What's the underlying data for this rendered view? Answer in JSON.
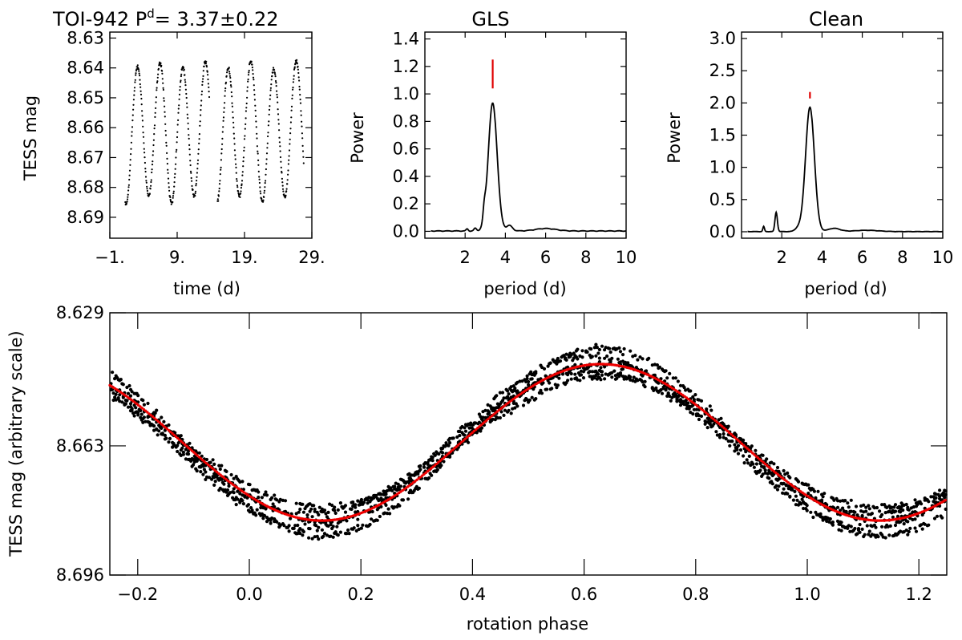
{
  "figure": {
    "title_star": "TOI-942",
    "title_period_symbol": "P",
    "title_period_sup": "d",
    "title_period_value": "= 3.37±0.22"
  },
  "chart_data": [
    {
      "type": "scatter",
      "name": "light curve",
      "xlabel": "time (d)",
      "ylabel": "TESS mag",
      "xlim": [
        -1,
        29
      ],
      "ylim": [
        8.697,
        8.628
      ],
      "y_inverted": true,
      "xticks": [
        -1,
        9,
        19,
        29
      ],
      "xtick_labels": [
        "−1.",
        "9.",
        "19.",
        "29."
      ],
      "yticks": [
        8.63,
        8.64,
        8.65,
        8.66,
        8.67,
        8.68,
        8.69
      ],
      "ytick_labels": [
        "8.63",
        "8.64",
        "8.65",
        "8.66",
        "8.67",
        "8.68",
        "8.69"
      ],
      "segments": [
        [
          1.3,
          13.8
        ],
        [
          15.0,
          27.8
        ]
      ],
      "model": {
        "period": 3.37,
        "amplitude": 0.0225,
        "mean": 8.6615,
        "epoch": 3.1
      }
    },
    {
      "type": "line",
      "name": "periodogram",
      "title": "GLS",
      "xlabel": "period (d)",
      "ylabel": "Power",
      "xlim": [
        0,
        10
      ],
      "ylim": [
        -0.05,
        1.45
      ],
      "xticks": [
        2,
        4,
        6,
        8,
        10
      ],
      "xtick_labels": [
        "2",
        "4",
        "6",
        "8",
        "10"
      ],
      "yticks": [
        0.0,
        0.2,
        0.4,
        0.6,
        0.8,
        1.0,
        1.2,
        1.4
      ],
      "ytick_labels": [
        "0.0",
        "0.2",
        "0.4",
        "0.6",
        "0.8",
        "1.0",
        "1.2",
        "1.4"
      ],
      "peaks": [
        {
          "x": 3.37,
          "y": 0.93,
          "w": 0.22
        },
        {
          "x": 2.95,
          "y": 0.08,
          "w": 0.06
        },
        {
          "x": 4.2,
          "y": 0.04,
          "w": 0.15
        },
        {
          "x": 6.0,
          "y": 0.018,
          "w": 0.5
        },
        {
          "x": 2.5,
          "y": 0.02,
          "w": 0.06
        },
        {
          "x": 2.1,
          "y": 0.015,
          "w": 0.05
        }
      ],
      "marker": {
        "x": 3.37,
        "y_from": 1.04,
        "y_to": 1.25,
        "color": "#e00000"
      }
    },
    {
      "type": "line",
      "name": "clean periodogram",
      "title": "Clean",
      "xlabel": "period (d)",
      "ylabel": "Power",
      "xlim": [
        0,
        10
      ],
      "ylim": [
        -0.1,
        3.1
      ],
      "xticks": [
        2,
        4,
        6,
        8,
        10
      ],
      "xtick_labels": [
        "2",
        "4",
        "6",
        "8",
        "10"
      ],
      "yticks": [
        0.0,
        0.5,
        1.0,
        1.5,
        2.0,
        2.5,
        3.0
      ],
      "ytick_labels": [
        "0.0",
        "0.5",
        "1.0",
        "1.5",
        "2.0",
        "2.5",
        "3.0"
      ],
      "peaks": [
        {
          "x": 3.4,
          "y": 1.93,
          "w": 0.22
        },
        {
          "x": 1.72,
          "y": 0.3,
          "w": 0.06
        },
        {
          "x": 1.1,
          "y": 0.08,
          "w": 0.04
        },
        {
          "x": 2.8,
          "y": 0.05,
          "w": 0.15
        },
        {
          "x": 4.6,
          "y": 0.05,
          "w": 0.3
        },
        {
          "x": 6.2,
          "y": 0.02,
          "w": 0.6
        }
      ],
      "marker": {
        "x": 3.4,
        "y_from": 2.07,
        "y_to": 2.17,
        "color": "#e00000"
      }
    },
    {
      "type": "scatter",
      "name": "phase-folded light curve",
      "xlabel": "rotation phase",
      "ylabel": "TESS mag (arbitrary scale)",
      "xlim": [
        -0.25,
        1.25
      ],
      "ylim": [
        8.696,
        8.629
      ],
      "y_inverted": true,
      "xticks": [
        -0.2,
        0.0,
        0.2,
        0.4,
        0.6,
        0.8,
        1.0,
        1.2
      ],
      "xtick_labels": [
        "−0.2",
        "0.0",
        "0.2",
        "0.4",
        "0.6",
        "0.8",
        "1.0",
        "1.2"
      ],
      "yticks": [
        8.629,
        8.663,
        8.696
      ],
      "ytick_labels": [
        "8.629",
        "8.663",
        "8.696"
      ],
      "model_color": "#ee0000",
      "model": {
        "mean": 8.6621,
        "amplitude": 0.01999,
        "phase_of_minimum": 0.13
      }
    }
  ]
}
